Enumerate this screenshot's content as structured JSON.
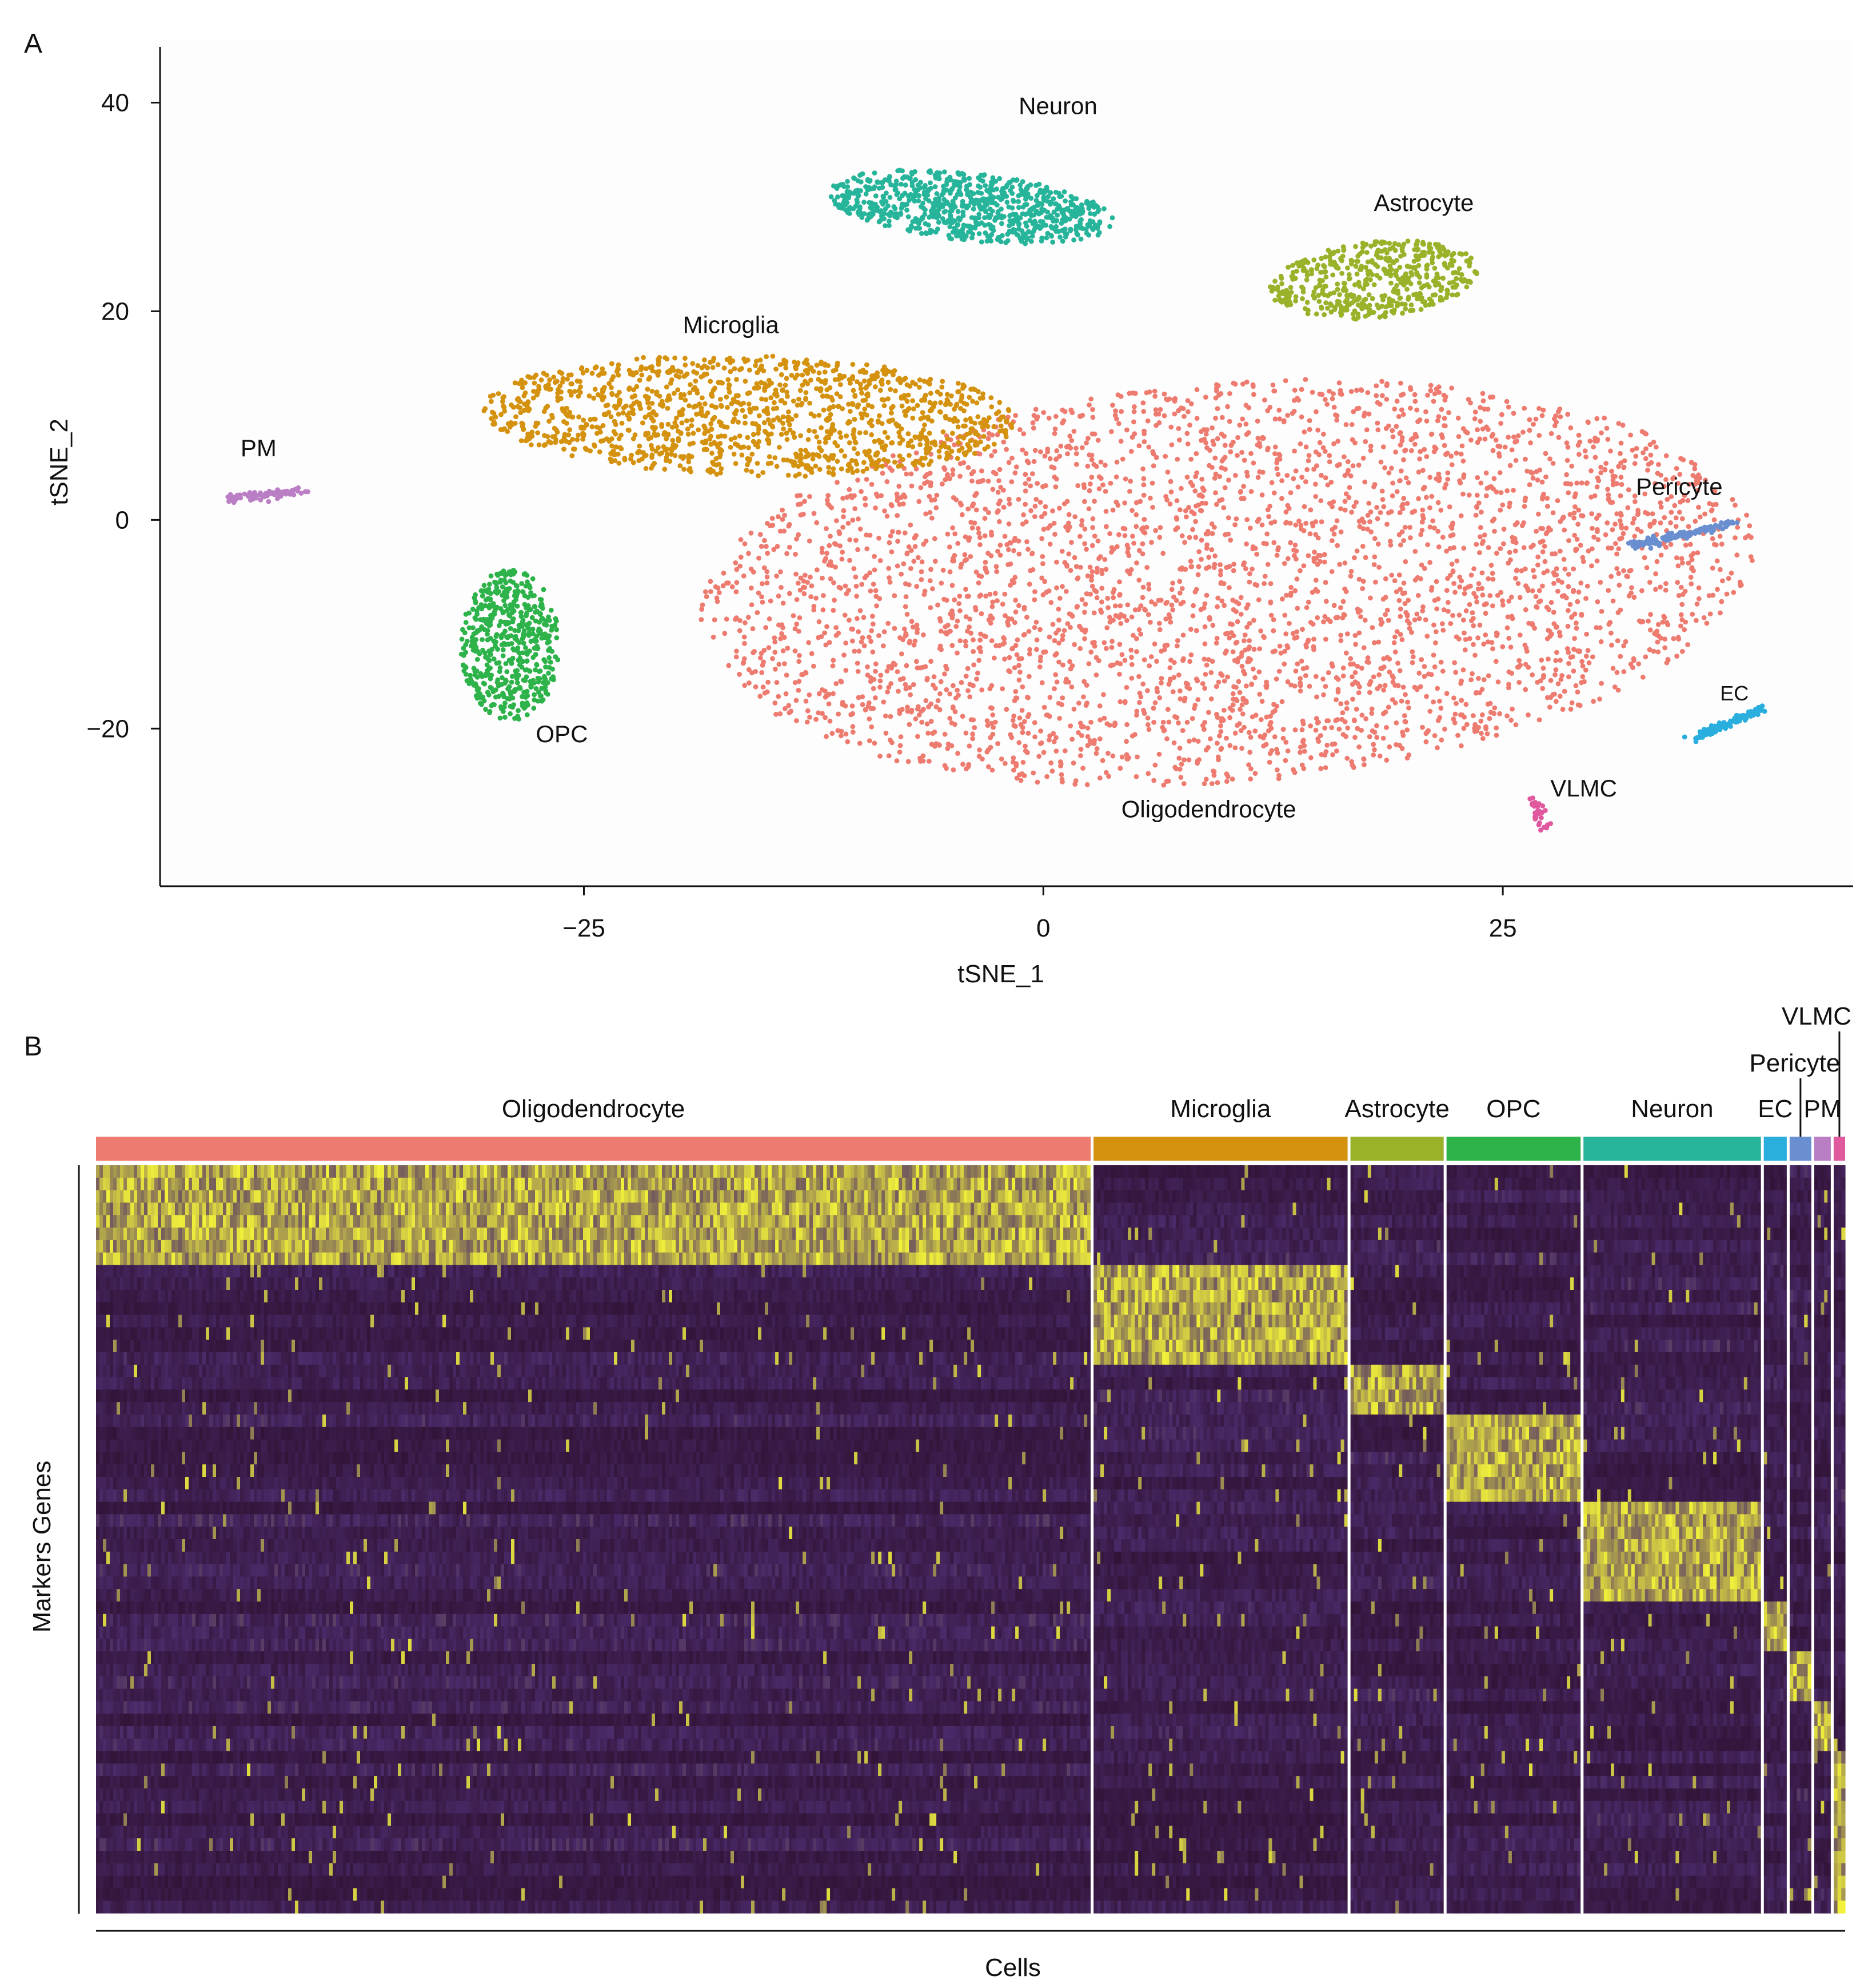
{
  "panel_a_label": "A",
  "panel_b_label": "B",
  "chart_data": [
    {
      "type": "scatter",
      "panel": "A",
      "xlabel": "tSNE_1",
      "ylabel": "tSNE_2",
      "xlim": [
        -48,
        44
      ],
      "ylim": [
        -35,
        46
      ],
      "xticks": [
        -25,
        0,
        25
      ],
      "yticks": [
        -20,
        0,
        20,
        40
      ],
      "grid": false,
      "clusters": [
        {
          "name": "Oligodendrocyte",
          "label": "Oligodendrocyte",
          "color": "#EE7B70",
          "n": 3600,
          "shape": "ellipse",
          "center": [
            10,
            -6
          ],
          "radius": [
            29,
            19
          ],
          "rotation": 12,
          "label_pos": [
            9,
            -28.5
          ]
        },
        {
          "name": "Microglia",
          "label": "Microglia",
          "color": "#D4920F",
          "n": 1300,
          "shape": "ellipse",
          "center": [
            -16,
            10
          ],
          "radius": [
            14.5,
            5.8
          ],
          "rotation": -3,
          "label_pos": [
            -17,
            17.9
          ]
        },
        {
          "name": "Astrocyte",
          "label": "Astrocyte",
          "color": "#98B22A",
          "n": 500,
          "shape": "ellipse",
          "center": [
            18,
            23
          ],
          "radius": [
            5.8,
            3.6
          ],
          "rotation": 15,
          "label_pos": [
            20.7,
            29.6
          ]
        },
        {
          "name": "OPC",
          "label": "OPC",
          "color": "#2DB34A",
          "n": 520,
          "shape": "ellipse",
          "center": [
            -29,
            -12
          ],
          "radius": [
            2.7,
            7.2
          ],
          "rotation": 0,
          "label_pos": [
            -26.2,
            -21.3
          ]
        },
        {
          "name": "Neuron",
          "label": "Neuron",
          "color": "#26B49A",
          "n": 800,
          "shape": "ellipse",
          "center": [
            -4,
            30
          ],
          "radius": [
            8,
            3.2
          ],
          "rotation": -12,
          "label_pos": [
            0.8,
            38.9
          ]
        },
        {
          "name": "Pericyte",
          "label": "Pericyte",
          "color": "#6A8FD0",
          "n": 120,
          "shape": "line",
          "start": [
            32,
            -2.5
          ],
          "end": [
            37.5,
            -0.3
          ],
          "label_pos": [
            34.6,
            2.4
          ]
        },
        {
          "name": "EC",
          "label": "EC",
          "color": "#29AEDE",
          "n": 110,
          "shape": "line",
          "start": [
            35.2,
            -21
          ],
          "end": [
            39.2,
            -18
          ],
          "label_pos": [
            37.6,
            -17.3
          ]
        },
        {
          "name": "PM",
          "label": "PM",
          "color": "#BA7EC5",
          "n": 90,
          "shape": "line",
          "start": [
            -44.5,
            2
          ],
          "end": [
            -40.2,
            2.8
          ],
          "label_pos": [
            -42.7,
            6.1
          ]
        },
        {
          "name": "VLMC",
          "label": "VLMC",
          "color": "#E0589E",
          "n": 30,
          "shape": "line",
          "start": [
            26.6,
            -26.5
          ],
          "end": [
            27.4,
            -30
          ],
          "label_pos": [
            29.4,
            -26.5
          ]
        }
      ]
    },
    {
      "type": "heatmap",
      "panel": "B",
      "xlabel": "Cells",
      "ylabel": "Markers Genes",
      "color_scale": [
        "#2b0d2a",
        "#4a2a68",
        "#f2f23a"
      ],
      "groups": [
        {
          "name": "Oligodendrocyte",
          "label": "Oligodendrocyte",
          "color": "#EE7B70",
          "weight": 779
        },
        {
          "name": "Microglia",
          "label": "Microglia",
          "color": "#D4920F",
          "weight": 199
        },
        {
          "name": "Astrocyte",
          "label": "Astrocyte",
          "color": "#98B22A",
          "weight": 73
        },
        {
          "name": "OPC",
          "label": "OPC",
          "color": "#2DB34A",
          "weight": 105
        },
        {
          "name": "Neuron",
          "label": "Neuron",
          "color": "#26B49A",
          "weight": 139
        },
        {
          "name": "EC",
          "label": "EC",
          "color": "#29AEDE",
          "weight": 18
        },
        {
          "name": "Pericyte",
          "label": "Pericyte",
          "color": "#6A8FD0",
          "weight": 17
        },
        {
          "name": "PM",
          "label": "PM",
          "color": "#BA7EC5",
          "weight": 13
        },
        {
          "name": "VLMC",
          "label": "VLMC",
          "color": "#E0589E",
          "weight": 9
        }
      ],
      "marker_blocks": [
        {
          "group": "Oligodendrocyte",
          "gene_rows": [
            0,
            8
          ]
        },
        {
          "group": "Microglia",
          "gene_rows": [
            8,
            16
          ]
        },
        {
          "group": "Astrocyte",
          "gene_rows": [
            16,
            20
          ]
        },
        {
          "group": "OPC",
          "gene_rows": [
            20,
            27
          ]
        },
        {
          "group": "Neuron",
          "gene_rows": [
            27,
            35
          ]
        },
        {
          "group": "EC",
          "gene_rows": [
            35,
            39
          ]
        },
        {
          "group": "Pericyte",
          "gene_rows": [
            39,
            43
          ]
        },
        {
          "group": "PM",
          "gene_rows": [
            43,
            47
          ]
        },
        {
          "group": "VLMC",
          "gene_rows": [
            47,
            60
          ]
        }
      ]
    }
  ]
}
